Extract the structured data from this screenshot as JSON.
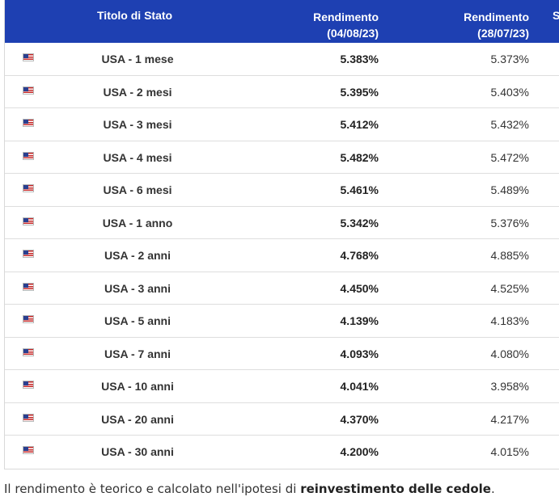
{
  "header": {
    "title_col": "Titolo di Stato",
    "yield_now_label": "Rendimento",
    "yield_now_date": "(04/08/23)",
    "yield_prev_label": "Rendimento",
    "yield_prev_date": "(28/07/23)",
    "next_col_partial": "S"
  },
  "rows": [
    {
      "name": "USA - 1 mese",
      "y1": "5.383%",
      "y2": "5.373%"
    },
    {
      "name": "USA - 2 mesi",
      "y1": "5.395%",
      "y2": "5.403%"
    },
    {
      "name": "USA - 3 mesi",
      "y1": "5.412%",
      "y2": "5.432%"
    },
    {
      "name": "USA - 4 mesi",
      "y1": "5.482%",
      "y2": "5.472%"
    },
    {
      "name": "USA - 6 mesi",
      "y1": "5.461%",
      "y2": "5.489%"
    },
    {
      "name": "USA - 1 anno",
      "y1": "5.342%",
      "y2": "5.376%"
    },
    {
      "name": "USA - 2 anni",
      "y1": "4.768%",
      "y2": "4.885%"
    },
    {
      "name": "USA - 3 anni",
      "y1": "4.450%",
      "y2": "4.525%"
    },
    {
      "name": "USA - 5 anni",
      "y1": "4.139%",
      "y2": "4.183%"
    },
    {
      "name": "USA - 7 anni",
      "y1": "4.093%",
      "y2": "4.080%"
    },
    {
      "name": "USA - 10 anni",
      "y1": "4.041%",
      "y2": "3.958%"
    },
    {
      "name": "USA - 20 anni",
      "y1": "4.370%",
      "y2": "4.217%"
    },
    {
      "name": "USA - 30 anni",
      "y1": "4.200%",
      "y2": "4.015%"
    }
  ],
  "flag_icon": "us-flag-icon",
  "colors": {
    "header_bg": "#1e40b2",
    "header_text": "#ffffff"
  },
  "note": {
    "prefix": "Il rendimento è teorico e calcolato nell'ipotesi di ",
    "bold": "reinvestimento delle cedole",
    "suffix": "."
  }
}
